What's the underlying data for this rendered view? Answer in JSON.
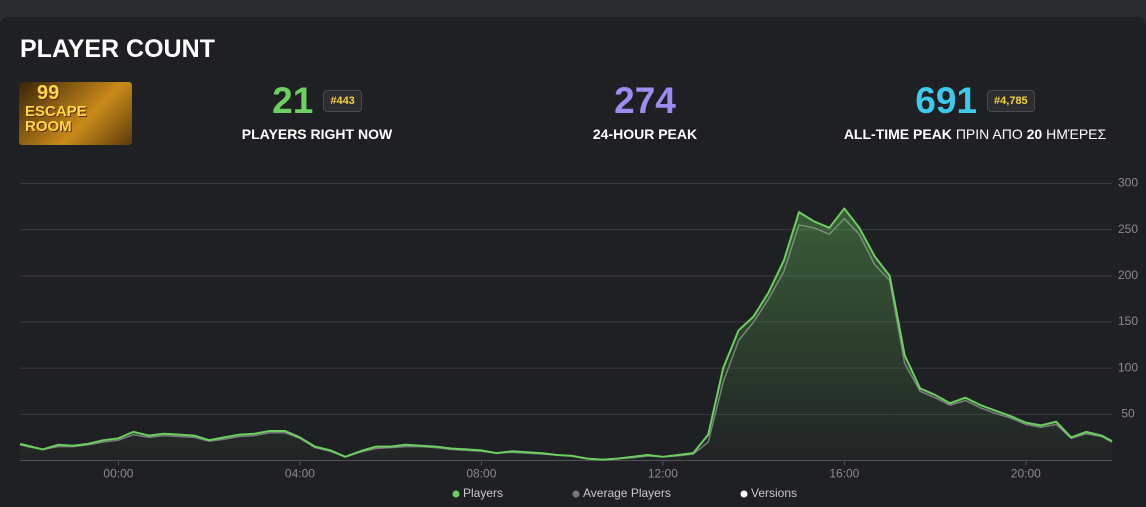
{
  "header": {
    "title": "PLAYER COUNT",
    "thumbnail_text": [
      "99",
      "ESCAPE",
      "ROOM"
    ]
  },
  "stats": [
    {
      "value": "21",
      "badge": "#443",
      "label": "PLAYERS RIGHT NOW",
      "color": "#6ccf5f"
    },
    {
      "value": "274",
      "label": "24-HOUR PEAK",
      "color": "#9d8cf2"
    },
    {
      "value": "691",
      "badge": "#4,785",
      "label": "ALL-TIME PEAK",
      "label_rest": "ΠΡΙΝ ΑΠΟ",
      "label_days": 20,
      "label_unit": "ΗΜΈΡΕΣ",
      "color": "#3ec8ea"
    }
  ],
  "chart_data": {
    "type": "line",
    "x": [
      -2.17,
      -2,
      -1.67,
      -1.33,
      -1,
      -0.67,
      -0.33,
      0,
      0.33,
      0.67,
      1,
      1.33,
      1.67,
      2,
      2.33,
      2.67,
      3,
      3.33,
      3.67,
      4,
      4.33,
      4.67,
      5,
      5.33,
      5.67,
      6,
      6.33,
      6.67,
      7,
      7.33,
      7.67,
      8,
      8.33,
      8.67,
      9,
      9.33,
      9.67,
      10,
      10.33,
      10.67,
      11,
      11.33,
      11.67,
      12,
      12.33,
      12.67,
      13,
      13.33,
      13.67,
      14,
      14.33,
      14.67,
      15,
      15.33,
      15.67,
      16,
      16.33,
      16.67,
      17,
      17.33,
      17.67,
      18,
      18.33,
      18.67,
      19,
      19.33,
      19.67,
      20,
      20.33,
      20.67,
      21,
      21.33,
      21.67,
      21.9
    ],
    "series": [
      {
        "name": "Players",
        "color": "#6ccf5f",
        "values": [
          18,
          16,
          12,
          17,
          16,
          18,
          22,
          24,
          31,
          27,
          29,
          28,
          27,
          22,
          25,
          28,
          29,
          32,
          32,
          25,
          15,
          11,
          4,
          10,
          15,
          15,
          17,
          16,
          15,
          13,
          12,
          11,
          8,
          10,
          9,
          8,
          6,
          5,
          2,
          1,
          2,
          4,
          6,
          4,
          6,
          8,
          28,
          100,
          141,
          156,
          182,
          217,
          269,
          259,
          252,
          273,
          252,
          221,
          200,
          114,
          78,
          71,
          62,
          68,
          60,
          54,
          48,
          41,
          38,
          42,
          25,
          31,
          27,
          21
        ]
      },
      {
        "name": "Average Players",
        "color": "#77787c",
        "values": [
          17,
          15,
          12,
          15,
          15,
          17,
          20,
          22,
          28,
          25,
          27,
          26,
          25,
          21,
          23,
          26,
          27,
          30,
          30,
          24,
          14,
          10,
          4,
          9,
          13,
          14,
          15,
          15,
          14,
          12,
          11,
          10,
          8,
          9,
          8,
          7,
          6,
          5,
          2,
          1,
          2,
          3,
          5,
          4,
          5,
          7,
          20,
          85,
          130,
          150,
          175,
          205,
          255,
          252,
          245,
          262,
          245,
          212,
          195,
          105,
          75,
          68,
          60,
          65,
          57,
          51,
          46,
          39,
          36,
          39,
          24,
          29,
          26,
          20
        ]
      }
    ],
    "versions_legend": {
      "name": "Versions",
      "color": "#ffffff"
    },
    "xlim": [
      -2.17,
      21.9
    ],
    "xticks": [
      {
        "value": 0,
        "label": "00:00"
      },
      {
        "value": 4,
        "label": "04:00"
      },
      {
        "value": 8,
        "label": "08:00"
      },
      {
        "value": 12,
        "label": "12:00"
      },
      {
        "value": 16,
        "label": "16:00"
      },
      {
        "value": 20,
        "label": "20:00"
      }
    ],
    "ylim": [
      0,
      300
    ],
    "yticks": [
      50,
      100,
      150,
      200,
      250,
      300
    ],
    "grid": true
  }
}
